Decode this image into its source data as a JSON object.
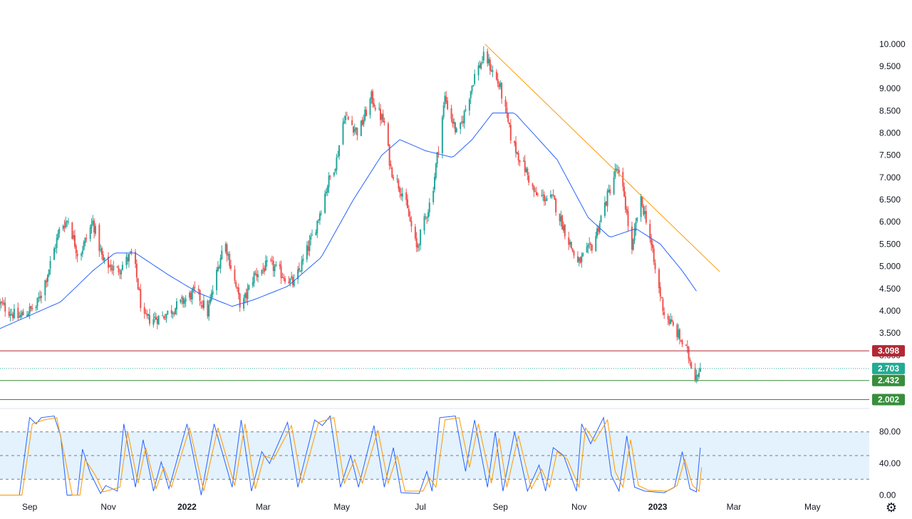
{
  "chart_data": [
    {
      "type": "candlestick",
      "panel": "price",
      "series": [
        {
          "name": "",
          "kind": "ohlc",
          "knots": [
            [
              "2021-08-09",
              4.15
            ],
            [
              "2021-08-23",
              3.85
            ],
            [
              "2021-09-06",
              4.1
            ],
            [
              "2021-09-14",
              4.75
            ],
            [
              "2021-09-25",
              5.9
            ],
            [
              "2021-10-01",
              6.05
            ],
            [
              "2021-10-09",
              5.2
            ],
            [
              "2021-10-20",
              6.0
            ],
            [
              "2021-10-28",
              5.1
            ],
            [
              "2021-11-08",
              4.9
            ],
            [
              "2021-11-20",
              5.3
            ],
            [
              "2021-11-28",
              3.8
            ],
            [
              "2021-12-12",
              3.85
            ],
            [
              "2021-12-24",
              4.1
            ],
            [
              "2022-01-08",
              4.45
            ],
            [
              "2022-01-17",
              3.95
            ],
            [
              "2022-01-30",
              5.6
            ],
            [
              "2022-02-12",
              4.05
            ],
            [
              "2022-02-22",
              4.8
            ],
            [
              "2022-03-06",
              5.05
            ],
            [
              "2022-03-25",
              4.6
            ],
            [
              "2022-04-10",
              5.8
            ],
            [
              "2022-04-20",
              6.85
            ],
            [
              "2022-04-27",
              7.4
            ],
            [
              "2022-05-03",
              8.4
            ],
            [
              "2022-05-14",
              8.0
            ],
            [
              "2022-05-24",
              8.8
            ],
            [
              "2022-06-03",
              8.2
            ],
            [
              "2022-06-08",
              7.2
            ],
            [
              "2022-06-18",
              6.6
            ],
            [
              "2022-06-28",
              5.4
            ],
            [
              "2022-07-10",
              6.6
            ],
            [
              "2022-07-20",
              8.8
            ],
            [
              "2022-07-30",
              7.9
            ],
            [
              "2022-08-12",
              9.3
            ],
            [
              "2022-08-20",
              9.75
            ],
            [
              "2022-09-01",
              9.0
            ],
            [
              "2022-09-10",
              7.8
            ],
            [
              "2022-09-20",
              7.2
            ],
            [
              "2022-09-28",
              6.6
            ],
            [
              "2022-10-12",
              6.5
            ],
            [
              "2022-10-21",
              5.8
            ],
            [
              "2022-10-31",
              5.05
            ],
            [
              "2022-11-12",
              5.5
            ],
            [
              "2022-11-20",
              6.3
            ],
            [
              "2022-11-30",
              7.2
            ],
            [
              "2022-12-06",
              6.6
            ],
            [
              "2022-12-12",
              5.3
            ],
            [
              "2022-12-18",
              6.55
            ],
            [
              "2022-12-24",
              6.0
            ],
            [
              "2022-12-30",
              4.9
            ],
            [
              "2023-01-06",
              3.95
            ],
            [
              "2023-01-16",
              3.5
            ],
            [
              "2023-01-24",
              3.05
            ],
            [
              "2023-01-30",
              2.55
            ],
            [
              "2023-02-03",
              2.703
            ]
          ]
        },
        {
          "name": "",
          "kind": "moving-average",
          "color": "#2962ff",
          "knots": [
            [
              "2021-08-09",
              3.6
            ],
            [
              "2021-09-25",
              4.2
            ],
            [
              "2021-10-20",
              4.9
            ],
            [
              "2021-11-06",
              5.3
            ],
            [
              "2021-11-22",
              5.3
            ],
            [
              "2021-12-18",
              4.8
            ],
            [
              "2022-01-10",
              4.4
            ],
            [
              "2022-02-05",
              4.1
            ],
            [
              "2022-02-22",
              4.25
            ],
            [
              "2022-03-20",
              4.55
            ],
            [
              "2022-04-15",
              5.2
            ],
            [
              "2022-05-10",
              6.5
            ],
            [
              "2022-06-01",
              7.5
            ],
            [
              "2022-06-15",
              7.85
            ],
            [
              "2022-07-05",
              7.6
            ],
            [
              "2022-07-26",
              7.45
            ],
            [
              "2022-08-10",
              7.85
            ],
            [
              "2022-08-26",
              8.45
            ],
            [
              "2022-09-12",
              8.45
            ],
            [
              "2022-10-15",
              7.4
            ],
            [
              "2022-11-08",
              6.1
            ],
            [
              "2022-11-25",
              5.65
            ],
            [
              "2022-12-15",
              5.85
            ],
            [
              "2023-01-03",
              5.5
            ],
            [
              "2023-01-20",
              4.9
            ],
            [
              "2023-02-01",
              4.4
            ]
          ]
        }
      ],
      "trendline": {
        "from": [
          "2022-08-20",
          10.0
        ],
        "to": [
          "2023-02-18",
          4.88
        ],
        "color": "#ff9800"
      },
      "horizontal_levels": [
        {
          "value": 3.098,
          "label": "3.098",
          "color": "#b22833"
        },
        {
          "value": 2.703,
          "label": "2.703",
          "color": "#22ab94",
          "dotted": true
        },
        {
          "value": 2.432,
          "label": "2.432",
          "color": "#388e3c"
        },
        {
          "value": 2.002,
          "label": "2.002",
          "color": "#388e3c"
        }
      ],
      "ylim": [
        1.85,
        10.35
      ],
      "yticks": [
        "10.000",
        "9.500",
        "9.000",
        "8.500",
        "8.000",
        "7.500",
        "7.000",
        "6.500",
        "6.000",
        "5.500",
        "5.000",
        "4.500",
        "4.000",
        "3.500",
        "3.000"
      ],
      "xticks": [
        "Sep",
        "Nov",
        "2022",
        "Mar",
        "May",
        "Jul",
        "Sep",
        "Nov",
        "2023",
        "Mar",
        "May"
      ],
      "xlim": [
        "2021-08-09",
        "2023-06-14"
      ]
    },
    {
      "type": "line",
      "panel": "stochastic-rsi",
      "series": [
        {
          "name": "",
          "color": "#2962ff",
          "knots": [
            [
              "2021-08-09",
              0
            ],
            [
              "2021-08-24",
              0
            ],
            [
              "2021-09-01",
              98
            ],
            [
              "2021-09-06",
              90
            ],
            [
              "2021-09-10",
              98
            ],
            [
              "2021-09-20",
              100
            ],
            [
              "2021-09-25",
              75
            ],
            [
              "2021-09-30",
              0
            ],
            [
              "2021-10-08",
              0
            ],
            [
              "2021-10-12",
              58
            ],
            [
              "2021-10-18",
              28
            ],
            [
              "2021-10-26",
              2
            ],
            [
              "2021-10-30",
              12
            ],
            [
              "2021-11-08",
              5
            ],
            [
              "2021-11-13",
              90
            ],
            [
              "2021-11-22",
              10
            ],
            [
              "2021-11-28",
              70
            ],
            [
              "2021-12-06",
              5
            ],
            [
              "2021-12-12",
              42
            ],
            [
              "2021-12-18",
              8
            ],
            [
              "2022-01-01",
              90
            ],
            [
              "2022-01-12",
              0
            ],
            [
              "2022-01-22",
              90
            ],
            [
              "2022-02-05",
              10
            ],
            [
              "2022-02-12",
              95
            ],
            [
              "2022-02-20",
              5
            ],
            [
              "2022-02-28",
              55
            ],
            [
              "2022-03-06",
              40
            ],
            [
              "2022-03-20",
              92
            ],
            [
              "2022-03-28",
              10
            ],
            [
              "2022-04-10",
              95
            ],
            [
              "2022-04-16",
              88
            ],
            [
              "2022-04-22",
              100
            ],
            [
              "2022-04-30",
              10
            ],
            [
              "2022-05-08",
              50
            ],
            [
              "2022-05-14",
              10
            ],
            [
              "2022-05-26",
              88
            ],
            [
              "2022-06-03",
              10
            ],
            [
              "2022-06-10",
              60
            ],
            [
              "2022-06-16",
              3
            ],
            [
              "2022-06-30",
              2
            ],
            [
              "2022-07-06",
              30
            ],
            [
              "2022-07-10",
              5
            ],
            [
              "2022-07-16",
              98
            ],
            [
              "2022-07-28",
              100
            ],
            [
              "2022-08-05",
              30
            ],
            [
              "2022-08-12",
              95
            ],
            [
              "2022-08-22",
              10
            ],
            [
              "2022-08-28",
              80
            ],
            [
              "2022-09-03",
              5
            ],
            [
              "2022-09-12",
              80
            ],
            [
              "2022-09-22",
              5
            ],
            [
              "2022-10-01",
              38
            ],
            [
              "2022-10-06",
              5
            ],
            [
              "2022-10-12",
              60
            ],
            [
              "2022-10-20",
              50
            ],
            [
              "2022-10-30",
              5
            ],
            [
              "2022-11-03",
              90
            ],
            [
              "2022-11-10",
              65
            ],
            [
              "2022-11-20",
              98
            ],
            [
              "2022-11-26",
              25
            ],
            [
              "2022-12-02",
              5
            ],
            [
              "2022-12-08",
              75
            ],
            [
              "2022-12-14",
              10
            ],
            [
              "2022-12-22",
              5
            ],
            [
              "2023-01-06",
              3
            ],
            [
              "2023-01-14",
              10
            ],
            [
              "2023-01-20",
              55
            ],
            [
              "2023-01-26",
              8
            ],
            [
              "2023-01-31",
              4
            ],
            [
              "2023-02-03",
              60
            ]
          ]
        },
        {
          "name": "",
          "color": "#ff9800",
          "knots": [
            [
              "2021-08-09",
              0
            ],
            [
              "2021-08-26",
              0
            ],
            [
              "2021-09-03",
              90
            ],
            [
              "2021-09-12",
              95
            ],
            [
              "2021-09-22",
              98
            ],
            [
              "2021-09-28",
              50
            ],
            [
              "2021-10-04",
              0
            ],
            [
              "2021-10-10",
              0
            ],
            [
              "2021-10-14",
              45
            ],
            [
              "2021-10-22",
              25
            ],
            [
              "2021-10-28",
              4
            ],
            [
              "2021-11-10",
              10
            ],
            [
              "2021-11-16",
              80
            ],
            [
              "2021-11-24",
              15
            ],
            [
              "2021-11-30",
              60
            ],
            [
              "2021-12-08",
              8
            ],
            [
              "2021-12-14",
              35
            ],
            [
              "2021-12-20",
              10
            ],
            [
              "2022-01-03",
              85
            ],
            [
              "2022-01-14",
              5
            ],
            [
              "2022-01-25",
              85
            ],
            [
              "2022-02-07",
              12
            ],
            [
              "2022-02-15",
              90
            ],
            [
              "2022-02-23",
              8
            ],
            [
              "2022-03-02",
              50
            ],
            [
              "2022-03-09",
              45
            ],
            [
              "2022-03-23",
              88
            ],
            [
              "2022-03-31",
              15
            ],
            [
              "2022-04-13",
              92
            ],
            [
              "2022-04-25",
              98
            ],
            [
              "2022-05-03",
              15
            ],
            [
              "2022-05-11",
              45
            ],
            [
              "2022-05-17",
              15
            ],
            [
              "2022-05-29",
              82
            ],
            [
              "2022-06-06",
              15
            ],
            [
              "2022-06-13",
              50
            ],
            [
              "2022-06-19",
              5
            ],
            [
              "2022-07-03",
              5
            ],
            [
              "2022-07-08",
              22
            ],
            [
              "2022-07-13",
              10
            ],
            [
              "2022-07-20",
              95
            ],
            [
              "2022-07-31",
              98
            ],
            [
              "2022-08-08",
              35
            ],
            [
              "2022-08-15",
              90
            ],
            [
              "2022-08-25",
              15
            ],
            [
              "2022-08-31",
              72
            ],
            [
              "2022-09-06",
              10
            ],
            [
              "2022-09-15",
              75
            ],
            [
              "2022-09-25",
              8
            ],
            [
              "2022-10-03",
              33
            ],
            [
              "2022-10-09",
              10
            ],
            [
              "2022-10-15",
              55
            ],
            [
              "2022-10-23",
              45
            ],
            [
              "2022-11-01",
              10
            ],
            [
              "2022-11-06",
              85
            ],
            [
              "2022-11-13",
              68
            ],
            [
              "2022-11-23",
              95
            ],
            [
              "2022-11-29",
              30
            ],
            [
              "2022-12-05",
              10
            ],
            [
              "2022-12-11",
              70
            ],
            [
              "2022-12-17",
              12
            ],
            [
              "2022-12-25",
              6
            ],
            [
              "2023-01-08",
              5
            ],
            [
              "2023-01-16",
              12
            ],
            [
              "2023-01-22",
              45
            ],
            [
              "2023-01-28",
              12
            ],
            [
              "2023-02-02",
              5
            ],
            [
              "2023-02-04",
              35
            ]
          ]
        }
      ],
      "bands": {
        "upper": 80,
        "middle": 50,
        "lower": 20,
        "fill": "#e3f2fd"
      },
      "ylim": [
        -5,
        105
      ],
      "yticks": [
        "80.00",
        "40.00",
        "0.00"
      ]
    }
  ],
  "icons": {
    "settings": "gear-icon"
  }
}
